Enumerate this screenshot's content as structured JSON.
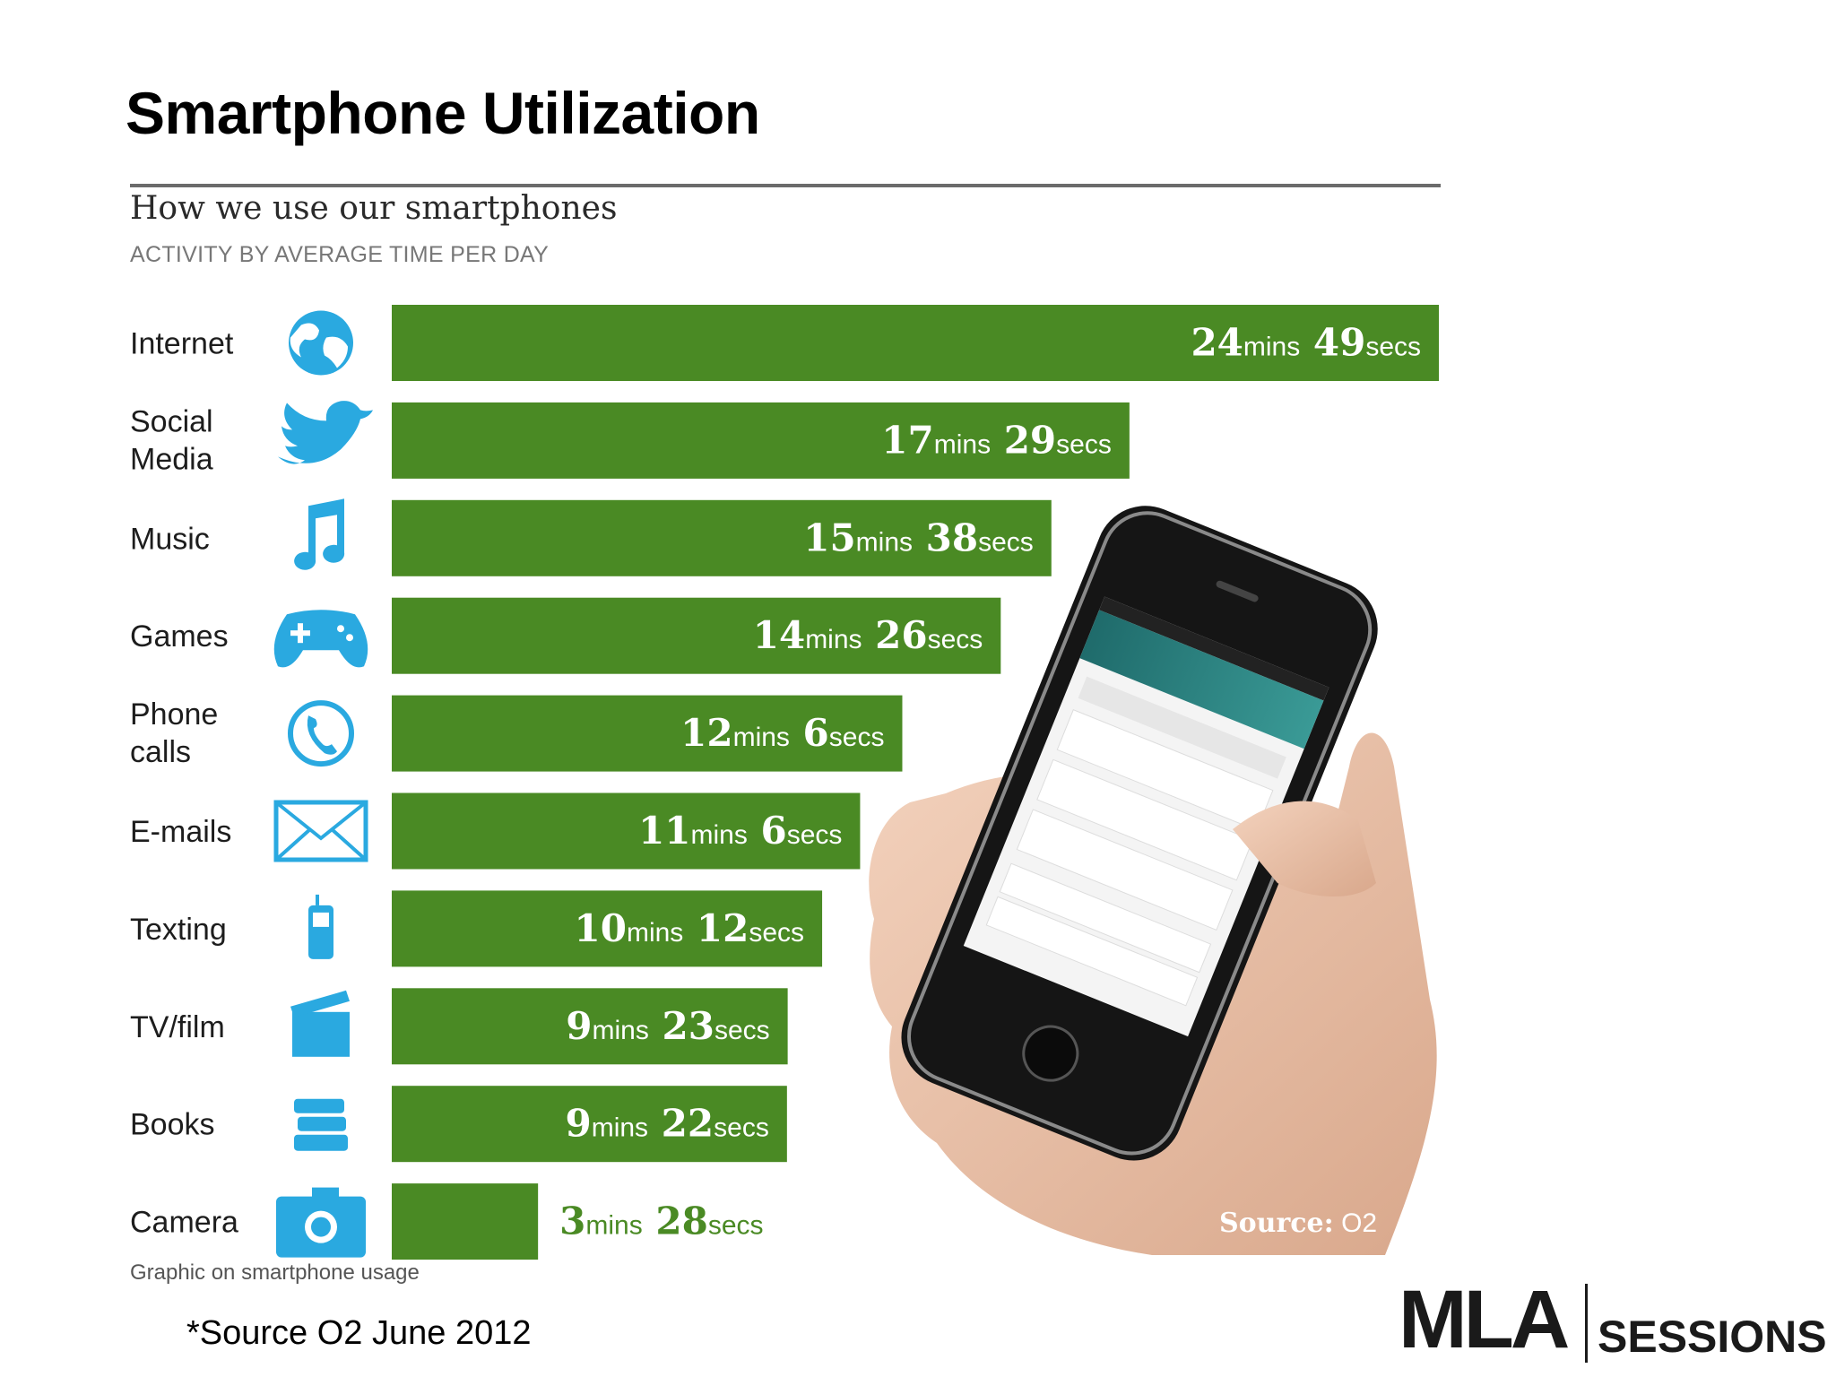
{
  "slide": {
    "title": "Smartphone Utilization",
    "footnote": "*Source O2 June 2012",
    "logo": {
      "main": "MLA",
      "secondary": "SESSIONS"
    }
  },
  "chart_data": {
    "type": "bar",
    "orientation": "horizontal",
    "title": "How we use our smartphones",
    "subtitle": "ACTIVITY BY AVERAGE TIME PER DAY",
    "caption": "Graphic on smartphone usage",
    "image_source_label": "Source:",
    "image_source_value": "O2",
    "bar_color": "#4a8a24",
    "outside_label_color": "#4a8a24",
    "icon_color": "#2aa9e0",
    "categories": [
      {
        "label": "Internet",
        "icon": "globe-icon",
        "minutes": 24,
        "seconds": 49
      },
      {
        "label": "Social Media",
        "icon": "bird-icon",
        "minutes": 17,
        "seconds": 29
      },
      {
        "label": "Music",
        "icon": "music-note-icon",
        "minutes": 15,
        "seconds": 38
      },
      {
        "label": "Games",
        "icon": "gamepad-icon",
        "minutes": 14,
        "seconds": 26
      },
      {
        "label": "Phone calls",
        "icon": "phone-icon",
        "minutes": 12,
        "seconds": 6
      },
      {
        "label": "E-mails",
        "icon": "envelope-icon",
        "minutes": 11,
        "seconds": 6
      },
      {
        "label": "Texting",
        "icon": "mobile-icon",
        "minutes": 10,
        "seconds": 12
      },
      {
        "label": "TV/film",
        "icon": "clapperboard-icon",
        "minutes": 9,
        "seconds": 23
      },
      {
        "label": "Books",
        "icon": "books-icon",
        "minutes": 9,
        "seconds": 22
      },
      {
        "label": "Camera",
        "icon": "camera-icon",
        "minutes": 3,
        "seconds": 28
      }
    ],
    "unit_minutes": "mins",
    "unit_seconds": "secs",
    "legend": "none",
    "grid": false
  }
}
